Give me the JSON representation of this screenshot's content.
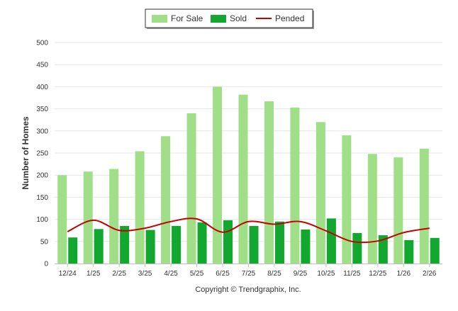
{
  "chart_data": {
    "type": "bar",
    "categories": [
      "12/24",
      "1/25",
      "2/25",
      "3/25",
      "4/25",
      "5/25",
      "6/25",
      "7/25",
      "8/25",
      "9/25",
      "10/25",
      "11/25",
      "12/25",
      "1/26",
      "2/26"
    ],
    "series": [
      {
        "name": "For Sale",
        "kind": "bar",
        "color": "#a0de88",
        "values": [
          200,
          208,
          214,
          254,
          288,
          340,
          400,
          382,
          367,
          353,
          320,
          290,
          248,
          240,
          260
        ]
      },
      {
        "name": "Sold",
        "kind": "bar",
        "color": "#12a830",
        "values": [
          59,
          78,
          85,
          76,
          85,
          93,
          98,
          85,
          95,
          77,
          102,
          69,
          64,
          53,
          58
        ]
      },
      {
        "name": "Pended",
        "kind": "line",
        "color": "#c40000",
        "values": [
          72,
          98,
          75,
          80,
          95,
          101,
          71,
          95,
          89,
          95,
          74,
          50,
          51,
          70,
          80
        ]
      }
    ],
    "title": "",
    "xlabel": "",
    "ylabel": "Number of Homes",
    "ylim": [
      0,
      500
    ],
    "yticks": [
      0,
      50,
      100,
      150,
      200,
      250,
      300,
      350,
      400,
      450,
      500
    ],
    "grid": true,
    "legend_position": "top-center",
    "credit": "Copyright © Trendgraphix, Inc."
  }
}
